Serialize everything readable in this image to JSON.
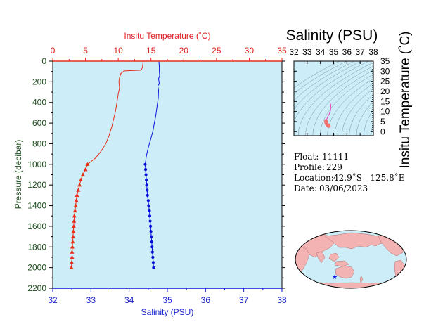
{
  "main_chart": {
    "top_axis_title": "Insitu Temperature (˚C)",
    "bottom_axis_title": "Salinity (PSU)",
    "left_axis_title": "Pressure (decibar)",
    "temp_ticks": [
      "0",
      "5",
      "10",
      "15",
      "20",
      "25",
      "30",
      "35"
    ],
    "sal_ticks": [
      "32",
      "33",
      "34",
      "35",
      "36",
      "37",
      "38"
    ],
    "pres_ticks": [
      "0",
      "200",
      "400",
      "600",
      "800",
      "1000",
      "1200",
      "1400",
      "1600",
      "1800",
      "2000",
      "2200"
    ]
  },
  "ts_chart": {
    "title": "Salinity (PSU)",
    "right_axis_title": "Insitu Temperature (˚C)",
    "sal_ticks": [
      "32",
      "33",
      "34",
      "35",
      "36",
      "37",
      "38"
    ],
    "temp_ticks": [
      "0",
      "5",
      "10",
      "15",
      "20",
      "25",
      "30",
      "35"
    ]
  },
  "info": {
    "float_label": "Float:",
    "float_value": "11111",
    "profile_label": "Profile:",
    "profile_value": "229",
    "location_label": "Location:",
    "location_value": "42.9˚S   125.8˚E",
    "date_label": "Date:",
    "date_value": "03/06/2023"
  },
  "colors": {
    "plot_bg": "#cdeef8",
    "temperature": "#e8301c",
    "salinity": "#0a12d8",
    "axis_text": "#1e4d1e",
    "land": "#f4b3b3",
    "ocean": "#cdeef8",
    "marker": "#0a12d8"
  },
  "chart_data": [
    {
      "type": "line",
      "title": "",
      "xlabel": "Salinity (PSU)",
      "x2label": "Insitu Temperature (˚C)",
      "ylabel": "Pressure (decibar)",
      "xlim": [
        32,
        38
      ],
      "x2lim": [
        0,
        35
      ],
      "ylim": [
        2200,
        0
      ],
      "series": [
        {
          "name": "Insitu Temperature (˚C)",
          "axis": "top",
          "color": "#e8301c",
          "marker_from_pressure": 1000,
          "marker": "triangle",
          "points": [
            [
              13.8,
              5
            ],
            [
              13.7,
              60
            ],
            [
              13.5,
              88
            ],
            [
              10.9,
              95
            ],
            [
              10.4,
              120
            ],
            [
              10.2,
              160
            ],
            [
              10.1,
              200
            ],
            [
              10.2,
              260
            ],
            [
              10.0,
              320
            ],
            [
              9.8,
              400
            ],
            [
              9.6,
              480
            ],
            [
              9.3,
              560
            ],
            [
              9.0,
              640
            ],
            [
              8.6,
              720
            ],
            [
              8.1,
              800
            ],
            [
              7.3,
              880
            ],
            [
              6.5,
              940
            ],
            [
              5.3,
              1000
            ],
            [
              5.0,
              1050
            ],
            [
              4.6,
              1100
            ],
            [
              4.3,
              1150
            ],
            [
              4.1,
              1200
            ],
            [
              3.9,
              1250
            ],
            [
              3.7,
              1300
            ],
            [
              3.6,
              1350
            ],
            [
              3.5,
              1400
            ],
            [
              3.4,
              1450
            ],
            [
              3.3,
              1500
            ],
            [
              3.25,
              1550
            ],
            [
              3.2,
              1600
            ],
            [
              3.15,
              1650
            ],
            [
              3.1,
              1700
            ],
            [
              3.05,
              1750
            ],
            [
              3.0,
              1800
            ],
            [
              2.95,
              1850
            ],
            [
              2.95,
              1900
            ],
            [
              2.9,
              1950
            ],
            [
              2.85,
              2000
            ]
          ]
        },
        {
          "name": "Salinity (PSU)",
          "axis": "bottom",
          "color": "#0a12d8",
          "marker_from_pressure": 1000,
          "marker": "circle",
          "points": [
            [
              34.78,
              5
            ],
            [
              34.79,
              60
            ],
            [
              34.79,
              100
            ],
            [
              34.8,
              140
            ],
            [
              34.77,
              170
            ],
            [
              34.79,
              220
            ],
            [
              34.75,
              240
            ],
            [
              34.77,
              280
            ],
            [
              34.76,
              360
            ],
            [
              34.73,
              440
            ],
            [
              34.7,
              520
            ],
            [
              34.66,
              600
            ],
            [
              34.62,
              680
            ],
            [
              34.56,
              760
            ],
            [
              34.5,
              840
            ],
            [
              34.45,
              920
            ],
            [
              34.42,
              1000
            ],
            [
              34.43,
              1050
            ],
            [
              34.44,
              1100
            ],
            [
              34.45,
              1150
            ],
            [
              34.46,
              1200
            ],
            [
              34.47,
              1250
            ],
            [
              34.48,
              1300
            ],
            [
              34.5,
              1350
            ],
            [
              34.51,
              1400
            ],
            [
              34.53,
              1450
            ],
            [
              34.54,
              1500
            ],
            [
              34.55,
              1550
            ],
            [
              34.56,
              1600
            ],
            [
              34.57,
              1650
            ],
            [
              34.58,
              1700
            ],
            [
              34.59,
              1750
            ],
            [
              34.6,
              1800
            ],
            [
              34.61,
              1850
            ],
            [
              34.62,
              1900
            ],
            [
              34.63,
              1950
            ],
            [
              34.64,
              2000
            ]
          ]
        }
      ]
    },
    {
      "type": "scatter",
      "title": "Salinity (PSU)",
      "xlabel": "Salinity (PSU)",
      "ylabel": "Insitu Temperature (˚C)",
      "xlim": [
        32,
        38
      ],
      "ylim": [
        -2,
        35
      ],
      "density_contours": true,
      "series": [
        {
          "name": "T-S profile",
          "color": "#e64fc8",
          "deep_color": "#f07070",
          "points": [
            [
              34.79,
              13.8
            ],
            [
              34.78,
              12.5
            ],
            [
              34.77,
              10.9
            ],
            [
              34.75,
              10.2
            ],
            [
              34.73,
              9.8
            ],
            [
              34.7,
              9.3
            ],
            [
              34.66,
              8.6
            ],
            [
              34.6,
              8.1
            ],
            [
              34.55,
              7.3
            ],
            [
              34.5,
              6.5
            ],
            [
              34.42,
              5.3
            ],
            [
              34.43,
              4.8
            ],
            [
              34.45,
              4.3
            ],
            [
              34.47,
              3.9
            ],
            [
              34.5,
              3.6
            ],
            [
              34.54,
              3.3
            ],
            [
              34.57,
              3.15
            ],
            [
              34.6,
              3.0
            ],
            [
              34.62,
              2.95
            ],
            [
              34.64,
              2.85
            ]
          ]
        }
      ]
    }
  ],
  "map": {
    "marker_label": "float position",
    "lat": -42.9,
    "lon": 125.8
  }
}
